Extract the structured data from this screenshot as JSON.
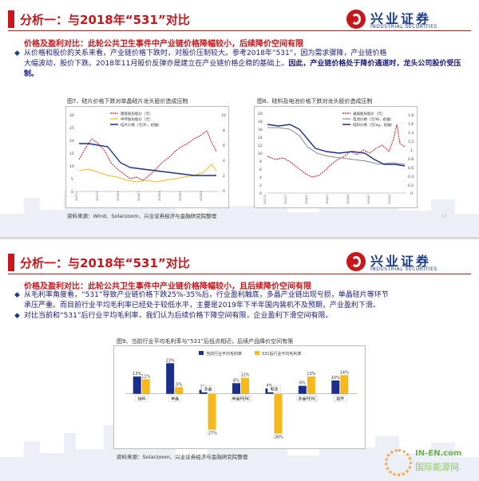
{
  "slide1": {
    "title": "分析一：与2018年“531”对比",
    "logo_cn": "兴业证券",
    "logo_en": "INDUSTRIAL SECURITIES",
    "subhead": "价格及盈利对比：此轮公共卫生事件中产业链价格降幅较小，后续降价空间有限",
    "bullet_line1": "从价格和股价的关系来看，产业链价格下跌时，对股价压制较大。参考2018年“531”，因为需求骤降，产业链价格",
    "bullet_line2": "大幅波动，股价下跌。2018年11月股价反弹亦是建立在产业链价格企稳的基础上。",
    "bullet_bold": "因此，产业链价格处于降价通道时，龙头公司股价受压制。",
    "fig7_caption": "图7、硅片价格下跌对单晶硅片龙头股价造成压制",
    "fig7_legend": [
      "隆基股份股价（元）",
      "中环股份股价（元）",
      "硅片价格（元/片，右轴）"
    ],
    "fig8_caption": "图8、硅料及电池价格下跌对龙头股价造成压制",
    "fig8_legend": [
      "通威股份股价（元）",
      "电池价格（元/W，右轴）",
      "硅料价格（元/kg，右轴）"
    ],
    "source": "资料来源：Wind、Solarzoom、兴业证券经济与金融研究院整理",
    "page_no": "13"
  },
  "slide2": {
    "title": "分析一：与2018年“531”对比",
    "logo_cn": "兴业证券",
    "logo_en": "INDUSTRIAL SECURITIES",
    "subhead": "价格及盈利对比：此轮公共卫生事件中产业链价格降幅较小，且后续降价空间有限",
    "bullet1_line1": "从毛利率角度看，“531”导致产业链价格下跌25%-35%后，行业盈利触底，多晶产业链出现亏损，单晶硅片等环节",
    "bullet1_line2": "承压严重。而目前行业平均毛利率已经处于较低水平，主要是2019年下半年国内装机不及预期，产业盈利下滑。",
    "bullet2": "对比当前和“531”后行业平均毛利率，我们认为后续价格下降空间有限，企业盈利下滑空间有限。",
    "fig9_caption": "图9、当前行业平均毛利率与“531”后低点相近，后续产品降价空间有限",
    "source": "资料来源：Solarzoom、兴业证券经济与金融研究院整理",
    "watermark_1": "IN-EN.com",
    "watermark_2": "国际能源网"
  },
  "fig7_axis": {
    "left": [
      "30",
      "25",
      "20",
      "15",
      "10",
      "5",
      "0"
    ],
    "right": [
      "10",
      "8",
      "6",
      "4",
      "2",
      "0"
    ]
  },
  "fig8_axis": {
    "left": [
      "20",
      "18",
      "16",
      "14",
      "12",
      "10",
      "8",
      "6",
      "4",
      "2",
      "0"
    ],
    "right": [
      "1.8",
      "1.6",
      "1.4",
      "1.2",
      "1",
      "0.8",
      "0.6",
      "0.4",
      "0.2",
      "0"
    ]
  },
  "chart_data": {
    "type": "bar",
    "title": "当前行业平均毛利率与“531”后低点相近，后续产品降价空间有限",
    "categories": [
      "硅料",
      "单晶",
      "多晶",
      "单晶PERC",
      "电池",
      "多晶PERC",
      "组件"
    ],
    "series": [
      {
        "name": "当前行业平均毛利率",
        "values": [
          13,
          23,
          3,
          8,
          4,
          6,
          10
        ]
      },
      {
        "name": "531后行业平均毛利率",
        "values": [
          11,
          5,
          -27,
          12,
          -30,
          13,
          14
        ]
      }
    ],
    "value_labels": [
      [
        "13%",
        "23%",
        "3%",
        "8%",
        "4%",
        "6%",
        "10%"
      ],
      [
        "11%",
        "5%",
        "-27%",
        "12%",
        "-30%",
        "13%",
        "14%"
      ]
    ],
    "ylim": [
      -35,
      25
    ],
    "colors": {
      "current": "#1c2e8c",
      "after531": "#f5b91e"
    }
  }
}
